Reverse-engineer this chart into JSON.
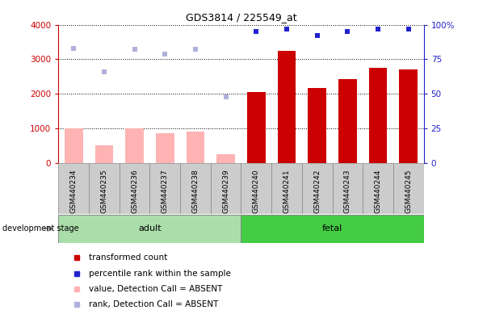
{
  "title": "GDS3814 / 225549_at",
  "samples": [
    "GSM440234",
    "GSM440235",
    "GSM440236",
    "GSM440237",
    "GSM440238",
    "GSM440239",
    "GSM440240",
    "GSM440241",
    "GSM440242",
    "GSM440243",
    "GSM440244",
    "GSM440245"
  ],
  "absent_mask": [
    true,
    true,
    true,
    true,
    true,
    true,
    false,
    false,
    false,
    false,
    false,
    false
  ],
  "transformed_count": [
    1000,
    500,
    1000,
    850,
    900,
    250,
    2050,
    3250,
    2170,
    2420,
    2750,
    2700
  ],
  "percentile_rank": [
    83,
    66,
    82,
    79,
    82,
    48,
    95,
    97,
    92,
    95,
    97,
    97
  ],
  "ylim_left": [
    0,
    4000
  ],
  "ylim_right": [
    0,
    100
  ],
  "yticks_left": [
    0,
    1000,
    2000,
    3000,
    4000
  ],
  "yticks_right": [
    0,
    25,
    50,
    75,
    100
  ],
  "bar_color_present": "#cc0000",
  "bar_color_absent": "#ffb3b3",
  "dot_color_present": "#2222cc",
  "dot_color_absent": "#b0b0dd",
  "adult_color": "#aaddaa",
  "fetal_color": "#44cc44",
  "tick_box_color": "#cccccc",
  "legend_items": [
    {
      "label": "transformed count",
      "color": "#cc0000"
    },
    {
      "label": "percentile rank within the sample",
      "color": "#2222cc"
    },
    {
      "label": "value, Detection Call = ABSENT",
      "color": "#ffb3b3"
    },
    {
      "label": "rank, Detection Call = ABSENT",
      "color": "#b0b0dd"
    }
  ],
  "annotation_label": "development stage",
  "figsize": [
    6.03,
    3.84
  ],
  "dpi": 100
}
